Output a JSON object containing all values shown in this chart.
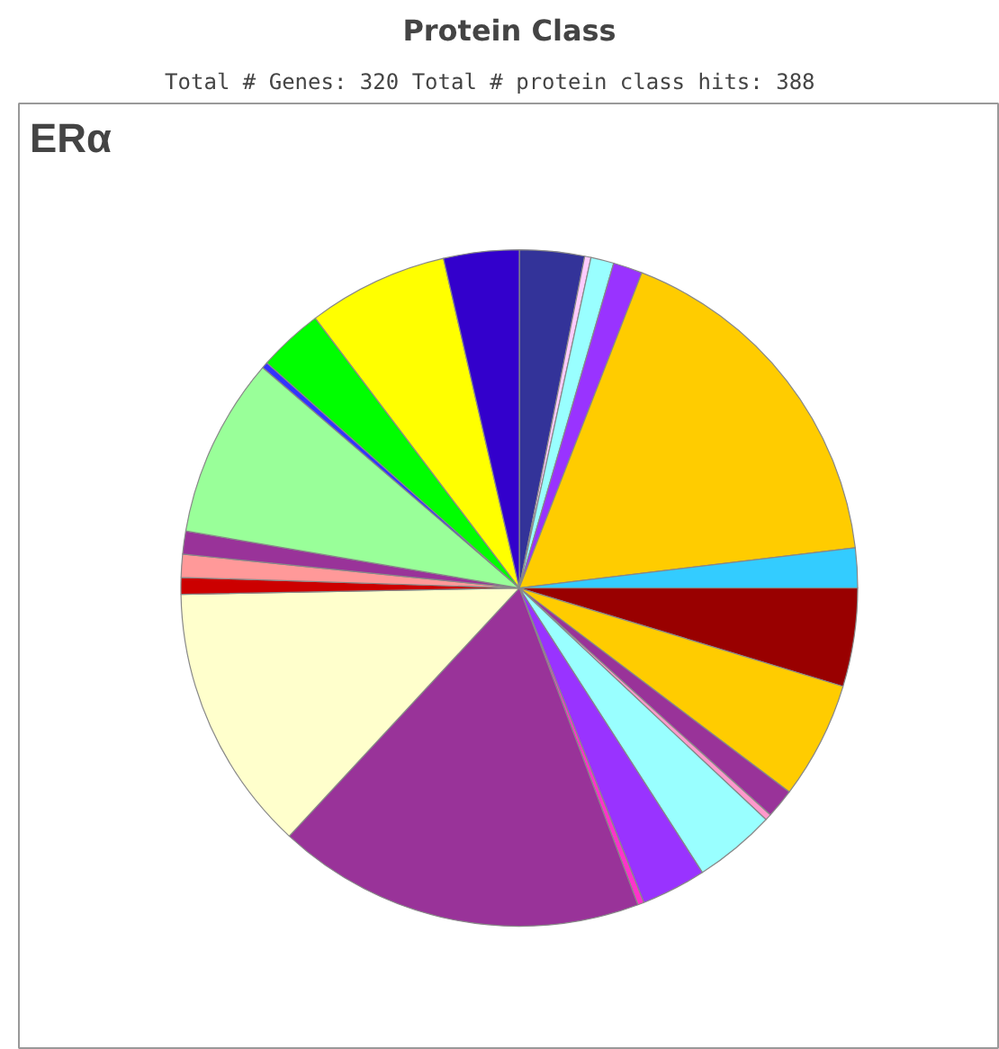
{
  "chart_data": {
    "type": "pie",
    "title": "Protein Class",
    "subtitle": "Total # Genes: 320    Total # protein class hits: 388",
    "annotations": [
      "ERα"
    ],
    "categories": [
      null,
      null,
      null,
      null,
      null,
      null,
      null,
      null,
      null,
      null,
      null,
      null,
      null,
      null,
      null,
      null,
      null,
      null,
      null,
      null,
      null,
      null,
      null
    ],
    "values": [
      3.1,
      0.3,
      1.1,
      1.4,
      17.2,
      1.9,
      4.7,
      5.6,
      1.4,
      0.3,
      3.9,
      3.1,
      0.3,
      17.6,
      12.8,
      0.8,
      1.1,
      1.1,
      8.6,
      0.3,
      3.1,
      6.7,
      3.6
    ],
    "colors": [
      "#333399",
      "#ffccff",
      "#99ffff",
      "#9933ff",
      "#ffcc00",
      "#33ccff",
      "#990000",
      "#ffcc00",
      "#993399",
      "#ff99cc",
      "#99ffff",
      "#9933ff",
      "#ff33cc",
      "#993399",
      "#ffffcc",
      "#cc0000",
      "#ff9999",
      "#993399",
      "#99ff99",
      "#3333ff",
      "#00ff00",
      "#ffff00",
      "#3300cc"
    ]
  }
}
